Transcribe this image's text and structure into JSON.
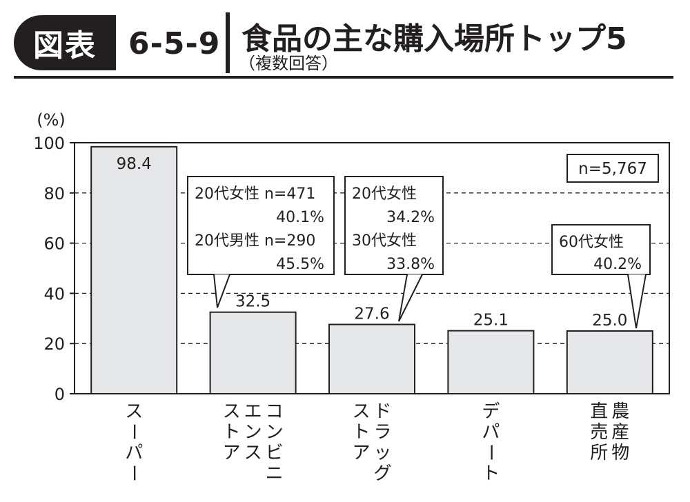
{
  "header": {
    "badge": "図表",
    "figure_number": "6-5-9",
    "title": "食品の主な購入場所トップ5",
    "subtitle": "（複数回答）"
  },
  "chart_data": {
    "type": "bar",
    "ylabel": "(%)",
    "ylim": [
      0,
      100
    ],
    "yticks": [
      0,
      20,
      40,
      60,
      80,
      100
    ],
    "grid": "dashed horizontal at 20, 40, 60, 80",
    "categories": [
      "スーパー",
      "コンビニエンスストア",
      "ドラッグストア",
      "デパート",
      "農産物直売所"
    ],
    "category_columns": [
      [
        "スーパー"
      ],
      [
        "コンビニ",
        "エンス",
        "ストア"
      ],
      [
        "ドラッグ",
        "ストア"
      ],
      [
        "デパート"
      ],
      [
        "農産物",
        "直売所"
      ]
    ],
    "values": [
      98.4,
      32.5,
      27.6,
      25.1,
      25.0
    ],
    "value_labels": [
      "98.4",
      "32.5",
      "27.6",
      "25.1",
      "25.0"
    ],
    "sample_note": "n=5,767",
    "bar_color": "#e6e7e8",
    "callouts": [
      {
        "category_index": 1,
        "lines": [
          "20代女性 n=471",
          "40.1%",
          "20代男性 n=290",
          "45.5%"
        ]
      },
      {
        "category_index": 2,
        "lines": [
          "20代女性",
          "34.2%",
          "30代女性",
          "33.8%"
        ]
      },
      {
        "category_index": 4,
        "lines": [
          "60代女性",
          "40.2%"
        ]
      }
    ]
  }
}
